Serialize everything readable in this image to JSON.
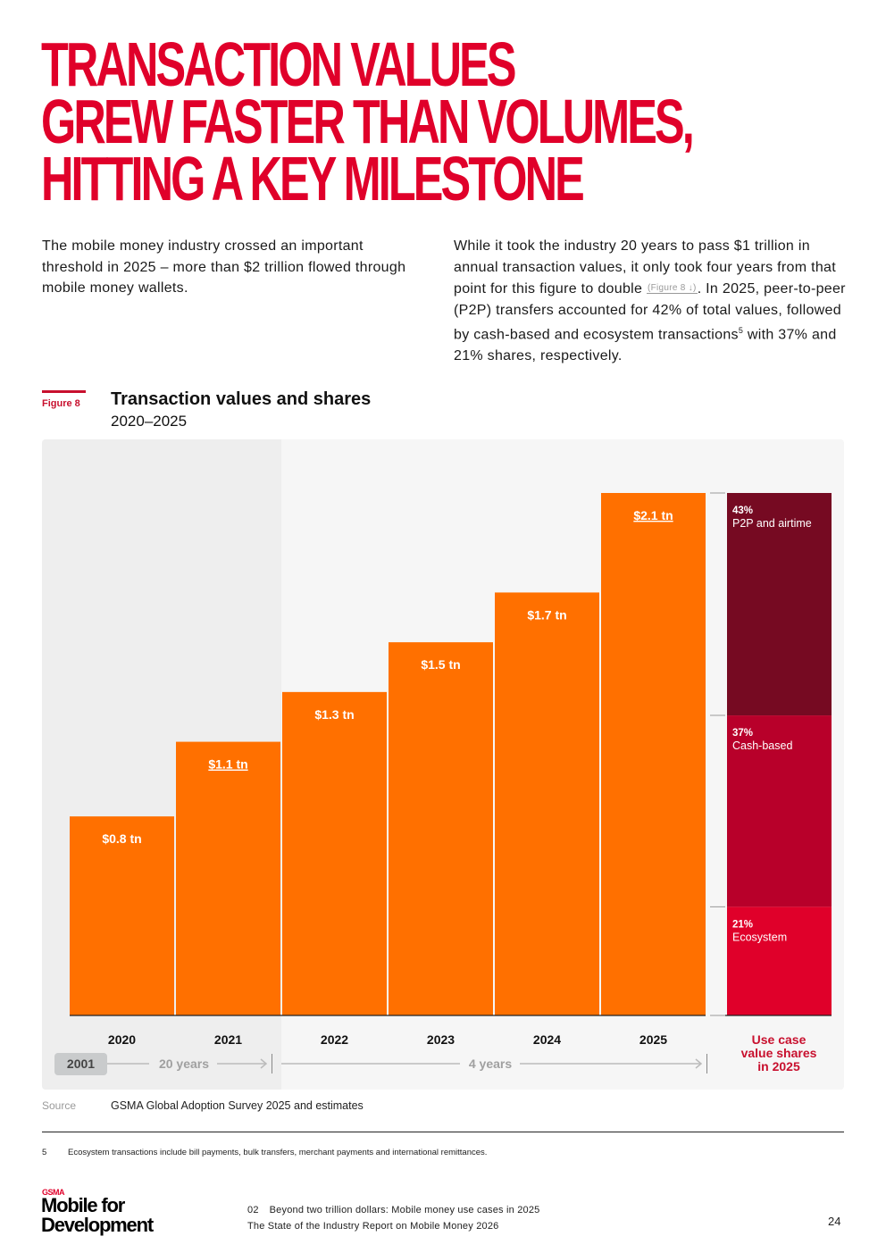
{
  "headline": [
    "Transaction values",
    "grew faster than volumes,",
    "hitting a key milestone"
  ],
  "intro": {
    "left": "The mobile money industry crossed an important threshold in 2025 – more than $2 trillion flowed through mobile money wallets.",
    "right_before_ref": "While it took the industry 20 years to pass $1 trillion in annual transaction values, it only took four years from that point for this figure to double ",
    "figure_ref": "(Figure 8 ↓)",
    "right_after_ref": ". In 2025, peer-to-peer (P2P) transfers accounted for 42% of total values, followed by cash-based and ecosystem transactions",
    "footnote_marker": "5",
    "right_end": " with 37% and 21% shares, respectively."
  },
  "figure": {
    "label": "Figure 8",
    "title": "Transaction values and shares",
    "subtitle": "2020–2025"
  },
  "chart_data": {
    "type": "bar",
    "title": "Transaction values and shares",
    "subtitle": "2020–2025",
    "categories": [
      "2020",
      "2021",
      "2022",
      "2023",
      "2024",
      "2025"
    ],
    "values": [
      0.8,
      1.1,
      1.3,
      1.5,
      1.7,
      2.1
    ],
    "unit": "trillion USD",
    "data_labels": [
      "$0.8 tn",
      "$1.1 tn",
      "$1.3 tn",
      "$1.5 tn",
      "$1.7 tn",
      "$2.1 tn"
    ],
    "underlined_labels": [
      "2021",
      "2025"
    ],
    "ylim": [
      0,
      2.1
    ],
    "grid": false,
    "bar_color": "#ff7000",
    "stacked_share": {
      "label": "Use case value shares in 2025",
      "label_color": "#c8102e",
      "segments": [
        {
          "name": "P2P and airtime",
          "pct_label": "43%",
          "value": 43,
          "color": "#760a22"
        },
        {
          "name": "Cash-based",
          "pct_label": "37%",
          "value": 37,
          "color": "#b8002a"
        },
        {
          "name": "Ecosystem",
          "pct_label": "21%",
          "value": 21,
          "color": "#e0002a"
        }
      ]
    },
    "timeline": {
      "start_badge": "2001",
      "span1_label": "20 years",
      "span2_label": "4 years"
    }
  },
  "source": {
    "label": "Source",
    "text": "GSMA Global Adoption Survey 2025 and estimates"
  },
  "footnote": {
    "number": "5",
    "text": "Ecosystem transactions include bill payments, bulk transfers, merchant payments and international remittances."
  },
  "footer": {
    "logo_top": "GSMA",
    "logo_line1": "Mobile for",
    "logo_line2": "Development",
    "section_number": "02",
    "section_title": "Beyond two trillion dollars: Mobile money use cases in 2025",
    "report_title": "The State of the Industry Report on Mobile Money 2026",
    "page_number": "24"
  }
}
